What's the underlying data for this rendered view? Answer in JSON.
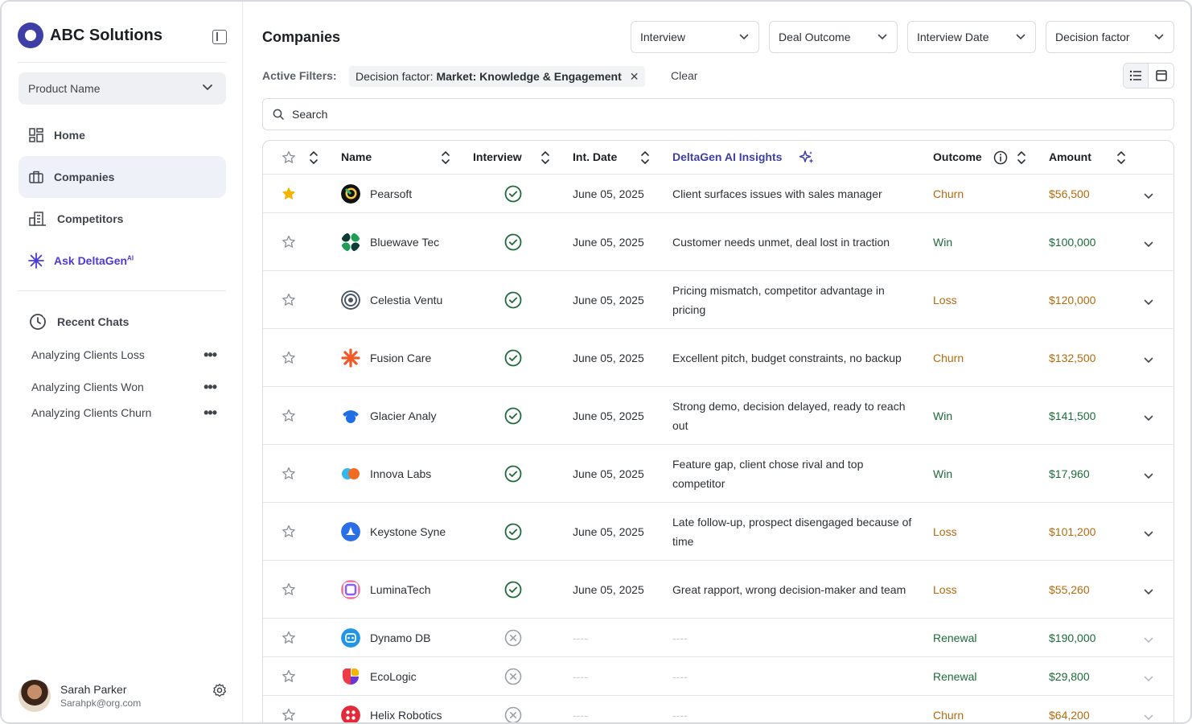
{
  "brand": {
    "name": "ABC Solutions"
  },
  "sidebar": {
    "product_select": "Product Name",
    "nav": [
      {
        "label": "Home",
        "icon": "grid-icon"
      },
      {
        "label": "Companies",
        "icon": "briefcase-icon"
      },
      {
        "label": "Competitors",
        "icon": "building-icon"
      },
      {
        "label": "Ask DeltaGen",
        "sup": "AI",
        "icon": "sparkle-icon"
      }
    ],
    "recent_title": "Recent Chats",
    "recent": [
      "Analyzing Clients Loss",
      "Analyzing Clients Won",
      "Analyzing Clients Churn"
    ],
    "user": {
      "name": "Sarah Parker",
      "email": "Sarahpk@org.com"
    }
  },
  "main": {
    "title": "Companies",
    "filters": [
      "Interview",
      "Deal Outcome",
      "Interview Date",
      "Decision factor"
    ],
    "active_filters_label": "Active Filters:",
    "chip_prefix": "Decision factor:",
    "chip_value": "Market: Knowledge & Engagement",
    "clear_label": "Clear",
    "search_placeholder": "Search",
    "columns": {
      "name": "Name",
      "interview": "Interview",
      "date": "Int. Date",
      "insights": "DeltaGen AI Insights",
      "outcome": "Outcome",
      "amount": "Amount"
    },
    "rows": [
      {
        "starred": true,
        "name": "Pearsoft",
        "interview": true,
        "date": "June 05, 2025",
        "insight": "Client surfaces issues with sales manager",
        "outcome": "Churn",
        "amount": "$56,500"
      },
      {
        "starred": false,
        "name": "Bluewave Tec",
        "interview": true,
        "date": "June 05, 2025",
        "insight": "Customer needs unmet, deal lost in traction",
        "outcome": "Win",
        "amount": "$100,000"
      },
      {
        "starred": false,
        "name": "Celestia Ventu",
        "interview": true,
        "date": "June 05, 2025",
        "insight": "Pricing mismatch, competitor advantage in pricing",
        "outcome": "Loss",
        "amount": "$120,000"
      },
      {
        "starred": false,
        "name": "Fusion Care",
        "interview": true,
        "date": "June 05, 2025",
        "insight": "Excellent pitch, budget constraints, no backup",
        "outcome": "Churn",
        "amount": "$132,500"
      },
      {
        "starred": false,
        "name": "Glacier Analy",
        "interview": true,
        "date": "June 05, 2025",
        "insight": "Strong demo, decision delayed, ready to reach out",
        "outcome": "Win",
        "amount": "$141,500"
      },
      {
        "starred": false,
        "name": "Innova Labs",
        "interview": true,
        "date": "June 05, 2025",
        "insight": "Feature gap, client chose rival and top competitor",
        "outcome": "Win",
        "amount": "$17,960"
      },
      {
        "starred": false,
        "name": "Keystone Syne",
        "interview": true,
        "date": "June 05, 2025",
        "insight": "Late follow-up, prospect disengaged because of time",
        "outcome": "Loss",
        "amount": "$101,200"
      },
      {
        "starred": false,
        "name": "LuminaTech",
        "interview": true,
        "date": "June 05, 2025",
        "insight": "Great rapport, wrong decision-maker and team",
        "outcome": "Loss",
        "amount": "$55,260"
      },
      {
        "starred": false,
        "name": "Dynamo DB",
        "interview": false,
        "date": "----",
        "insight": "----",
        "outcome": "Renewal",
        "amount": "$190,000"
      },
      {
        "starred": false,
        "name": "EcoLogic",
        "interview": false,
        "date": "----",
        "insight": "----",
        "outcome": "Renewal",
        "amount": "$29,800"
      },
      {
        "starred": false,
        "name": "Helix Robotics",
        "interview": false,
        "date": "----",
        "insight": "----",
        "outcome": "Churn",
        "amount": "$64,200"
      }
    ]
  },
  "colors": {
    "brand": "#3d3fa6",
    "ai": "#4b3bd6",
    "negative": "#b46a0e",
    "positive": "#1d6b3a",
    "check": "#1d6b3a",
    "star": "#f4b400"
  }
}
